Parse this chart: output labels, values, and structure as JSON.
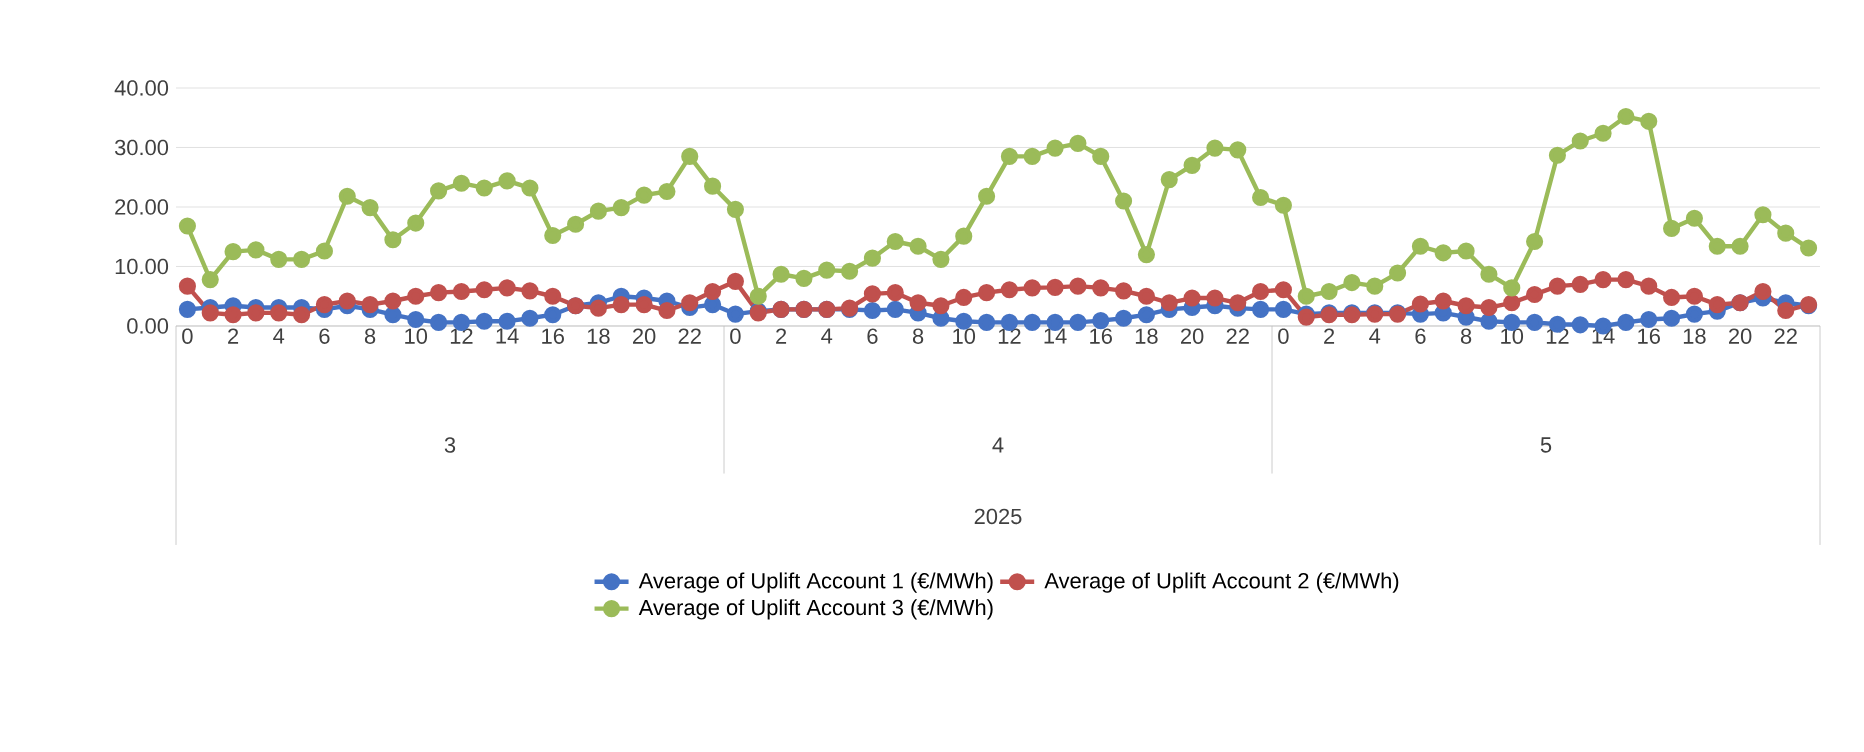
{
  "chart_data": {
    "type": "line",
    "categories": [
      "0",
      null,
      "2",
      null,
      "4",
      null,
      "6",
      null,
      "8",
      null,
      "10",
      null,
      "12",
      null,
      "14",
      null,
      "16",
      null,
      "18",
      null,
      "20",
      null,
      "22",
      null,
      "0",
      null,
      "2",
      null,
      "4",
      null,
      "6",
      null,
      "8",
      null,
      "10",
      null,
      "12",
      null,
      "14",
      null,
      "16",
      null,
      "18",
      null,
      "20",
      null,
      "22",
      null,
      "0",
      null,
      "2",
      null,
      "4",
      null,
      "6",
      null,
      "8",
      null,
      "10",
      null,
      "12",
      null,
      "14",
      null,
      "16",
      null,
      "18",
      null,
      "20",
      null,
      "22",
      null
    ],
    "series": [
      {
        "name": "Average of Uplift Account 1 (€/MWh)",
        "color": "#4472c4",
        "values": [
          2.8,
          3.1,
          3.4,
          3.1,
          3.1,
          3.1,
          2.8,
          3.4,
          2.8,
          1.9,
          1.1,
          0.6,
          0.6,
          0.8,
          0.8,
          1.3,
          1.9,
          3.4,
          3.9,
          5.0,
          4.7,
          4.2,
          3.1,
          3.6,
          2.0,
          2.5,
          2.8,
          2.8,
          2.8,
          2.8,
          2.6,
          2.8,
          2.2,
          1.3,
          0.8,
          0.6,
          0.6,
          0.6,
          0.6,
          0.6,
          0.9,
          1.3,
          1.9,
          2.8,
          3.1,
          3.4,
          3.0,
          2.8,
          2.8,
          2.0,
          2.2,
          2.2,
          2.2,
          2.2,
          2.0,
          2.2,
          1.5,
          0.8,
          0.6,
          0.6,
          0.3,
          0.2,
          0.0,
          0.6,
          1.1,
          1.3,
          2.0,
          2.5,
          3.9,
          4.7,
          3.9,
          3.4
        ]
      },
      {
        "name": "Average of Uplift Account 2 (€/MWh)",
        "color": "#c0504d",
        "values": [
          6.7,
          2.2,
          1.9,
          2.2,
          2.2,
          1.9,
          3.6,
          4.2,
          3.6,
          4.2,
          5.0,
          5.6,
          5.8,
          6.1,
          6.4,
          5.9,
          5.0,
          3.4,
          3.0,
          3.6,
          3.6,
          2.6,
          3.9,
          5.8,
          7.5,
          2.2,
          2.8,
          2.8,
          2.8,
          3.0,
          5.4,
          5.6,
          3.9,
          3.4,
          4.8,
          5.6,
          6.1,
          6.4,
          6.5,
          6.7,
          6.4,
          5.9,
          5.0,
          3.9,
          4.7,
          4.7,
          3.9,
          5.8,
          6.1,
          1.5,
          1.9,
          1.9,
          2.0,
          2.0,
          3.7,
          4.2,
          3.4,
          3.1,
          3.9,
          5.3,
          6.7,
          7.0,
          7.8,
          7.8,
          6.7,
          4.8,
          5.0,
          3.6,
          3.9,
          5.8,
          2.6,
          3.6
        ]
      },
      {
        "name": "Average of Uplift Account 3 (€/MWh)",
        "color": "#9bbb59",
        "values": [
          16.8,
          7.8,
          12.5,
          12.8,
          11.2,
          11.2,
          12.6,
          21.8,
          19.9,
          14.5,
          17.3,
          22.7,
          24.0,
          23.2,
          24.4,
          23.2,
          15.2,
          17.1,
          19.3,
          19.9,
          22.0,
          22.6,
          28.5,
          23.5,
          19.6,
          5.0,
          8.7,
          8.0,
          9.4,
          9.2,
          11.4,
          14.2,
          13.4,
          11.2,
          15.1,
          21.8,
          28.5,
          28.5,
          29.9,
          30.7,
          28.5,
          21.0,
          12.0,
          24.6,
          27.0,
          29.9,
          29.6,
          21.6,
          20.3,
          5.0,
          5.8,
          7.3,
          6.7,
          8.9,
          13.4,
          12.3,
          12.6,
          8.7,
          6.4,
          14.2,
          28.7,
          31.1,
          32.4,
          35.2,
          34.4,
          16.4,
          18.1,
          13.4,
          13.4,
          18.7,
          15.6,
          13.1
        ]
      }
    ],
    "annotations": [
      "3",
      "4",
      "5",
      "2025"
    ],
    "ylim": [
      0,
      40
    ],
    "yticks": [
      {
        "value": 0,
        "label": "0.00"
      },
      {
        "value": 10,
        "label": "10.00"
      },
      {
        "value": 20,
        "label": "20.00"
      },
      {
        "value": 30,
        "label": "30.00"
      },
      {
        "value": 40,
        "label": "40.00"
      }
    ],
    "grid": "y",
    "legend": "bottom",
    "marker": "circle",
    "line_style": "solid"
  }
}
